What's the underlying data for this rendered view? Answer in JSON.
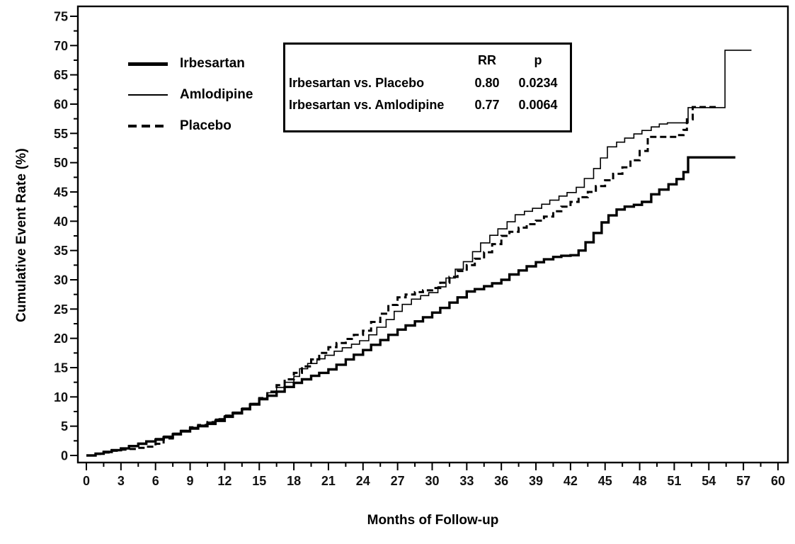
{
  "chart_data": {
    "type": "line",
    "subtype": "kaplan-meier-step",
    "title": "",
    "xlabel": "Months of Follow-up",
    "ylabel": "Cumulative Event Rate (%)",
    "xlim": [
      0,
      60
    ],
    "ylim": [
      0,
      75
    ],
    "x_major_tick_step": 3,
    "x_minor_tick_step": 1.5,
    "y_major_tick_step": 5,
    "y_minor_tick_step": 2.5,
    "grid": false,
    "legend_position": "inside-top-left",
    "line_color": "#000000",
    "background_color": "#ffffff",
    "series": [
      {
        "name": "Irbesartan",
        "style": "solid-thick",
        "stroke_width": 3.4,
        "points": [
          [
            0,
            0
          ],
          [
            0.8,
            0.3
          ],
          [
            1.5,
            0.6
          ],
          [
            2.2,
            0.9
          ],
          [
            3,
            1.2
          ],
          [
            3.7,
            1.6
          ],
          [
            4.5,
            2.0
          ],
          [
            5.2,
            2.4
          ],
          [
            6,
            2.7
          ],
          [
            6.7,
            3.1
          ],
          [
            7.5,
            3.6
          ],
          [
            8.2,
            4.1
          ],
          [
            9,
            4.6
          ],
          [
            9.7,
            5.0
          ],
          [
            10.5,
            5.4
          ],
          [
            11.2,
            5.9
          ],
          [
            12,
            6.6
          ],
          [
            12.7,
            7.2
          ],
          [
            13.5,
            7.9
          ],
          [
            14.2,
            8.7
          ],
          [
            15,
            9.6
          ],
          [
            15.7,
            10.2
          ],
          [
            16.5,
            10.9
          ],
          [
            17.2,
            11.7
          ],
          [
            18,
            12.4
          ],
          [
            18.7,
            13.0
          ],
          [
            19.5,
            13.6
          ],
          [
            20.2,
            14.1
          ],
          [
            21,
            14.7
          ],
          [
            21.7,
            15.5
          ],
          [
            22.5,
            16.4
          ],
          [
            23.2,
            17.2
          ],
          [
            24,
            18.0
          ],
          [
            24.7,
            18.9
          ],
          [
            25.5,
            19.7
          ],
          [
            26.2,
            20.6
          ],
          [
            27,
            21.5
          ],
          [
            27.7,
            22.2
          ],
          [
            28.5,
            22.9
          ],
          [
            29.2,
            23.6
          ],
          [
            30,
            24.4
          ],
          [
            30.7,
            25.2
          ],
          [
            31.5,
            26.1
          ],
          [
            32.2,
            27.0
          ],
          [
            33,
            28.0
          ],
          [
            33.7,
            28.4
          ],
          [
            34.5,
            28.9
          ],
          [
            35.2,
            29.4
          ],
          [
            36,
            30.0
          ],
          [
            36.7,
            30.9
          ],
          [
            37.5,
            31.6
          ],
          [
            38.2,
            32.3
          ],
          [
            39,
            33.0
          ],
          [
            39.7,
            33.5
          ],
          [
            40.5,
            33.9
          ],
          [
            41.2,
            34.1
          ],
          [
            42,
            34.2
          ],
          [
            42.7,
            35.0
          ],
          [
            43.3,
            36.4
          ],
          [
            44,
            38.0
          ],
          [
            44.7,
            39.8
          ],
          [
            45.3,
            41.0
          ],
          [
            46,
            42.0
          ],
          [
            46.7,
            42.5
          ],
          [
            47.5,
            42.8
          ],
          [
            48.2,
            43.3
          ],
          [
            49,
            44.6
          ],
          [
            49.7,
            45.4
          ],
          [
            50.5,
            46.3
          ],
          [
            51.2,
            47.2
          ],
          [
            51.8,
            48.4
          ],
          [
            52.2,
            50.9
          ],
          [
            56.3,
            50.9
          ]
        ]
      },
      {
        "name": "Amlodipine",
        "style": "solid-thin",
        "stroke_width": 1.6,
        "points": [
          [
            0,
            0
          ],
          [
            0.8,
            0.3
          ],
          [
            1.5,
            0.7
          ],
          [
            2.2,
            1.0
          ],
          [
            3,
            1.3
          ],
          [
            3.7,
            1.7
          ],
          [
            4.5,
            2.1
          ],
          [
            5.2,
            2.5
          ],
          [
            6,
            2.9
          ],
          [
            6.7,
            3.3
          ],
          [
            7.5,
            3.8
          ],
          [
            8.2,
            4.3
          ],
          [
            9,
            4.8
          ],
          [
            9.7,
            5.2
          ],
          [
            10.5,
            5.7
          ],
          [
            11.2,
            6.2
          ],
          [
            12,
            6.8
          ],
          [
            12.7,
            7.4
          ],
          [
            13.5,
            8.1
          ],
          [
            14.2,
            8.9
          ],
          [
            15,
            9.8
          ],
          [
            15.7,
            10.7
          ],
          [
            16.5,
            11.6
          ],
          [
            17.2,
            12.5
          ],
          [
            18,
            13.5
          ],
          [
            18.5,
            14.8
          ],
          [
            19.2,
            15.7
          ],
          [
            20,
            16.5
          ],
          [
            20.7,
            17.1
          ],
          [
            21.5,
            17.8
          ],
          [
            22.2,
            18.4
          ],
          [
            23,
            19.0
          ],
          [
            23.7,
            19.6
          ],
          [
            24.5,
            20.6
          ],
          [
            25.2,
            21.9
          ],
          [
            26,
            23.2
          ],
          [
            26.7,
            24.6
          ],
          [
            27.4,
            25.8
          ],
          [
            28.2,
            26.7
          ],
          [
            29,
            27.3
          ],
          [
            29.7,
            27.8
          ],
          [
            30.5,
            28.8
          ],
          [
            31.2,
            30.3
          ],
          [
            32,
            31.8
          ],
          [
            32.7,
            33.1
          ],
          [
            33.5,
            34.8
          ],
          [
            34.2,
            36.3
          ],
          [
            35,
            37.6
          ],
          [
            35.7,
            38.7
          ],
          [
            36.5,
            39.9
          ],
          [
            37.2,
            41.1
          ],
          [
            38,
            41.7
          ],
          [
            38.7,
            42.2
          ],
          [
            39.5,
            42.9
          ],
          [
            40.2,
            43.6
          ],
          [
            41,
            44.3
          ],
          [
            41.7,
            44.9
          ],
          [
            42.5,
            45.8
          ],
          [
            43.2,
            47.3
          ],
          [
            44,
            49.0
          ],
          [
            44.6,
            50.8
          ],
          [
            45.2,
            52.7
          ],
          [
            46,
            53.5
          ],
          [
            46.7,
            54.2
          ],
          [
            47.5,
            54.9
          ],
          [
            48.2,
            55.5
          ],
          [
            49,
            56.1
          ],
          [
            49.7,
            56.6
          ],
          [
            50.4,
            56.8
          ],
          [
            52.2,
            59.4
          ],
          [
            55.4,
            69.2
          ],
          [
            57.7,
            69.2
          ]
        ]
      },
      {
        "name": "Placebo",
        "style": "dashed",
        "stroke_width": 3.0,
        "points": [
          [
            0,
            0
          ],
          [
            0.8,
            0.25
          ],
          [
            1.5,
            0.5
          ],
          [
            2.2,
            0.8
          ],
          [
            3,
            1.0
          ],
          [
            3.7,
            1.1
          ],
          [
            4.5,
            1.3
          ],
          [
            5.2,
            1.5
          ],
          [
            6,
            2.0
          ],
          [
            6.7,
            2.9
          ],
          [
            7.5,
            3.7
          ],
          [
            8.2,
            4.2
          ],
          [
            9,
            4.8
          ],
          [
            9.7,
            5.2
          ],
          [
            10.5,
            5.7
          ],
          [
            11.2,
            6.2
          ],
          [
            12,
            6.8
          ],
          [
            12.7,
            7.3
          ],
          [
            13.5,
            7.9
          ],
          [
            14.2,
            8.8
          ],
          [
            15,
            9.8
          ],
          [
            15.7,
            10.9
          ],
          [
            16.5,
            12.0
          ],
          [
            17.2,
            13.0
          ],
          [
            18,
            14.1
          ],
          [
            18.7,
            15.2
          ],
          [
            19.5,
            16.4
          ],
          [
            20.2,
            17.5
          ],
          [
            21,
            18.5
          ],
          [
            21.7,
            19.2
          ],
          [
            22.5,
            19.9
          ],
          [
            23.2,
            20.6
          ],
          [
            24,
            21.3
          ],
          [
            24.7,
            22.8
          ],
          [
            25.5,
            24.2
          ],
          [
            26.2,
            25.7
          ],
          [
            27,
            27.0
          ],
          [
            27.7,
            27.5
          ],
          [
            28.5,
            27.9
          ],
          [
            29.2,
            28.2
          ],
          [
            30,
            28.6
          ],
          [
            30.7,
            29.5
          ],
          [
            31.5,
            30.5
          ],
          [
            32.2,
            31.5
          ],
          [
            33,
            32.5
          ],
          [
            33.7,
            33.6
          ],
          [
            34.5,
            34.7
          ],
          [
            35.2,
            36.1
          ],
          [
            36,
            37.5
          ],
          [
            36.7,
            38.2
          ],
          [
            37.5,
            38.9
          ],
          [
            38.2,
            39.5
          ],
          [
            39,
            40.1
          ],
          [
            39.7,
            40.8
          ],
          [
            40.5,
            41.7
          ],
          [
            41.2,
            42.5
          ],
          [
            42,
            43.3
          ],
          [
            42.7,
            44.1
          ],
          [
            43.5,
            45.0
          ],
          [
            44.2,
            46.0
          ],
          [
            45,
            47.0
          ],
          [
            45.7,
            48.1
          ],
          [
            46.5,
            49.2
          ],
          [
            47.2,
            50.4
          ],
          [
            48,
            52.0
          ],
          [
            48.7,
            54.4
          ],
          [
            51.2,
            54.7
          ],
          [
            51.8,
            55.6
          ],
          [
            52.1,
            57.4
          ],
          [
            52.6,
            59.5
          ],
          [
            54.7,
            59.6
          ]
        ]
      }
    ],
    "stats_box": {
      "col_rr": "RR",
      "col_p": "p",
      "rows": [
        {
          "label": "Irbesartan vs. Placebo",
          "rr": "0.80",
          "p": "0.0234"
        },
        {
          "label": "Irbesartan vs. Amlodipine",
          "rr": "0.77",
          "p": "0.0064"
        }
      ]
    }
  }
}
